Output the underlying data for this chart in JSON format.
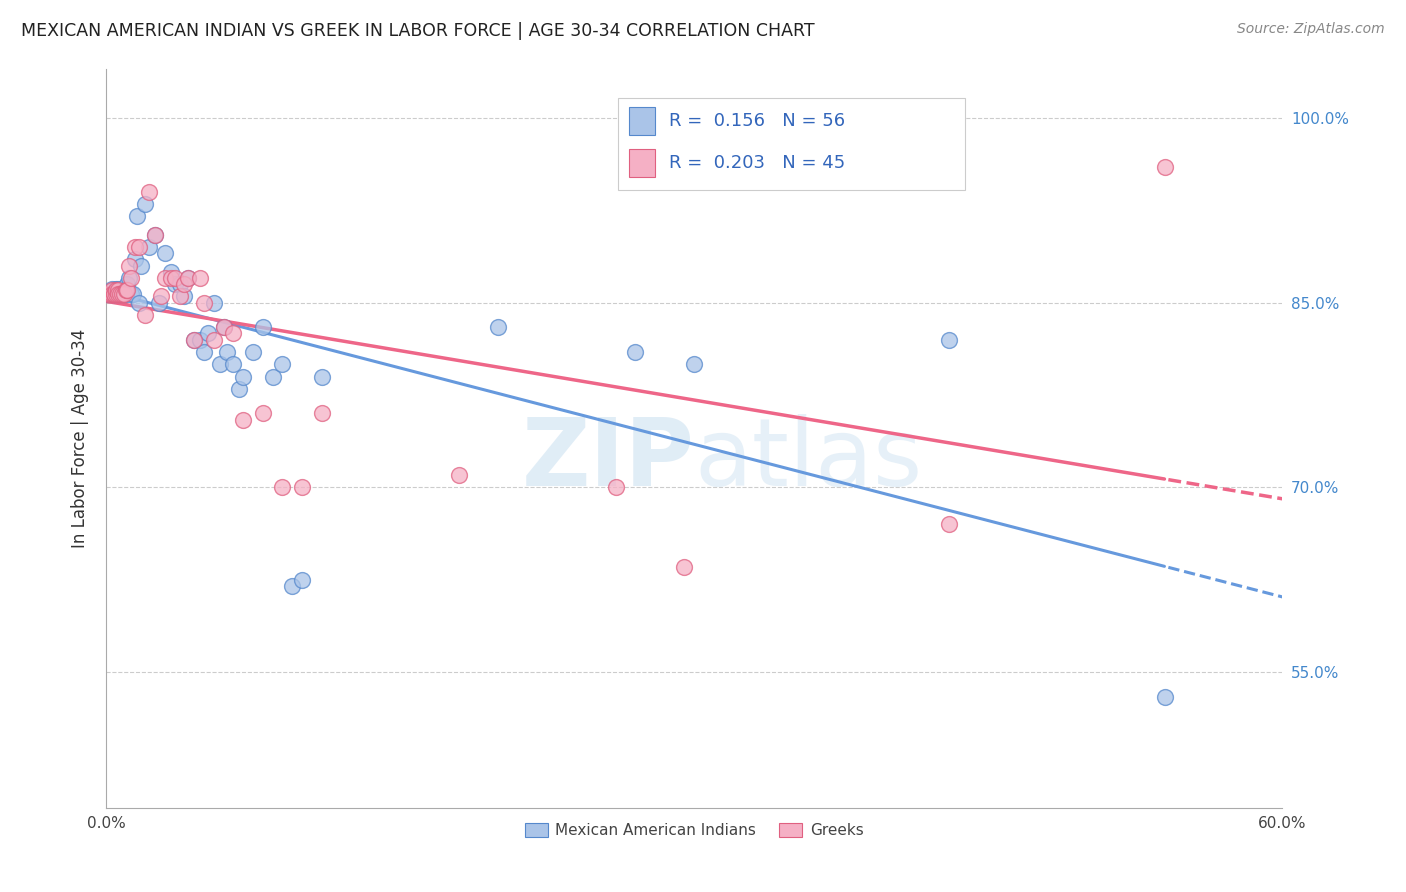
{
  "title": "MEXICAN AMERICAN INDIAN VS GREEK IN LABOR FORCE | AGE 30-34 CORRELATION CHART",
  "source": "Source: ZipAtlas.com",
  "ylabel": "In Labor Force | Age 30-34",
  "xlim": [
    0.0,
    0.6
  ],
  "ylim": [
    0.44,
    1.04
  ],
  "xticks": [
    0.0,
    0.1,
    0.2,
    0.3,
    0.4,
    0.5,
    0.6
  ],
  "xticklabels": [
    "0.0%",
    "",
    "",
    "",
    "",
    "",
    "60.0%"
  ],
  "yticks_right": [
    0.55,
    0.7,
    0.85,
    1.0
  ],
  "ytick_right_labels": [
    "55.0%",
    "70.0%",
    "85.0%",
    "100.0%"
  ],
  "legend_text_blue": "R =  0.156   N = 56",
  "legend_text_pink": "R =  0.203   N = 45",
  "legend_label_blue": "Mexican American Indians",
  "legend_label_pink": "Greeks",
  "blue_color": "#aac4e8",
  "pink_color": "#f5b0c5",
  "blue_edge_color": "#5588cc",
  "pink_edge_color": "#e06080",
  "trend_blue_color": "#6699dd",
  "trend_pink_color": "#ee6688",
  "watermark_zip": "ZIP",
  "watermark_atlas": "atlas",
  "blue_x": [
    0.001,
    0.002,
    0.003,
    0.003,
    0.004,
    0.004,
    0.005,
    0.005,
    0.006,
    0.006,
    0.007,
    0.008,
    0.009,
    0.01,
    0.01,
    0.011,
    0.012,
    0.013,
    0.014,
    0.015,
    0.016,
    0.017,
    0.018,
    0.02,
    0.022,
    0.025,
    0.027,
    0.03,
    0.033,
    0.035,
    0.038,
    0.04,
    0.042,
    0.045,
    0.048,
    0.05,
    0.052,
    0.055,
    0.058,
    0.06,
    0.062,
    0.065,
    0.068,
    0.07,
    0.075,
    0.08,
    0.085,
    0.09,
    0.095,
    0.1,
    0.11,
    0.2,
    0.27,
    0.3,
    0.43,
    0.54
  ],
  "blue_y": [
    0.857,
    0.857,
    0.861,
    0.857,
    0.857,
    0.857,
    0.857,
    0.861,
    0.861,
    0.857,
    0.857,
    0.857,
    0.857,
    0.857,
    0.861,
    0.865,
    0.87,
    0.857,
    0.857,
    0.885,
    0.92,
    0.85,
    0.88,
    0.93,
    0.895,
    0.905,
    0.85,
    0.89,
    0.875,
    0.865,
    0.865,
    0.855,
    0.87,
    0.82,
    0.82,
    0.81,
    0.825,
    0.85,
    0.8,
    0.83,
    0.81,
    0.8,
    0.78,
    0.79,
    0.81,
    0.83,
    0.79,
    0.8,
    0.62,
    0.625,
    0.79,
    0.83,
    0.81,
    0.8,
    0.82,
    0.53
  ],
  "pink_x": [
    0.001,
    0.002,
    0.003,
    0.003,
    0.004,
    0.004,
    0.005,
    0.005,
    0.006,
    0.006,
    0.007,
    0.008,
    0.009,
    0.01,
    0.011,
    0.012,
    0.013,
    0.015,
    0.017,
    0.02,
    0.022,
    0.025,
    0.028,
    0.03,
    0.033,
    0.035,
    0.038,
    0.04,
    0.042,
    0.045,
    0.048,
    0.05,
    0.055,
    0.06,
    0.065,
    0.07,
    0.08,
    0.09,
    0.1,
    0.11,
    0.18,
    0.26,
    0.295,
    0.43,
    0.54
  ],
  "pink_y": [
    0.857,
    0.857,
    0.86,
    0.857,
    0.857,
    0.857,
    0.857,
    0.86,
    0.86,
    0.857,
    0.857,
    0.857,
    0.857,
    0.86,
    0.86,
    0.88,
    0.87,
    0.895,
    0.895,
    0.84,
    0.94,
    0.905,
    0.855,
    0.87,
    0.87,
    0.87,
    0.855,
    0.865,
    0.87,
    0.82,
    0.87,
    0.85,
    0.82,
    0.83,
    0.825,
    0.755,
    0.76,
    0.7,
    0.7,
    0.76,
    0.71,
    0.7,
    0.635,
    0.67,
    0.96
  ]
}
